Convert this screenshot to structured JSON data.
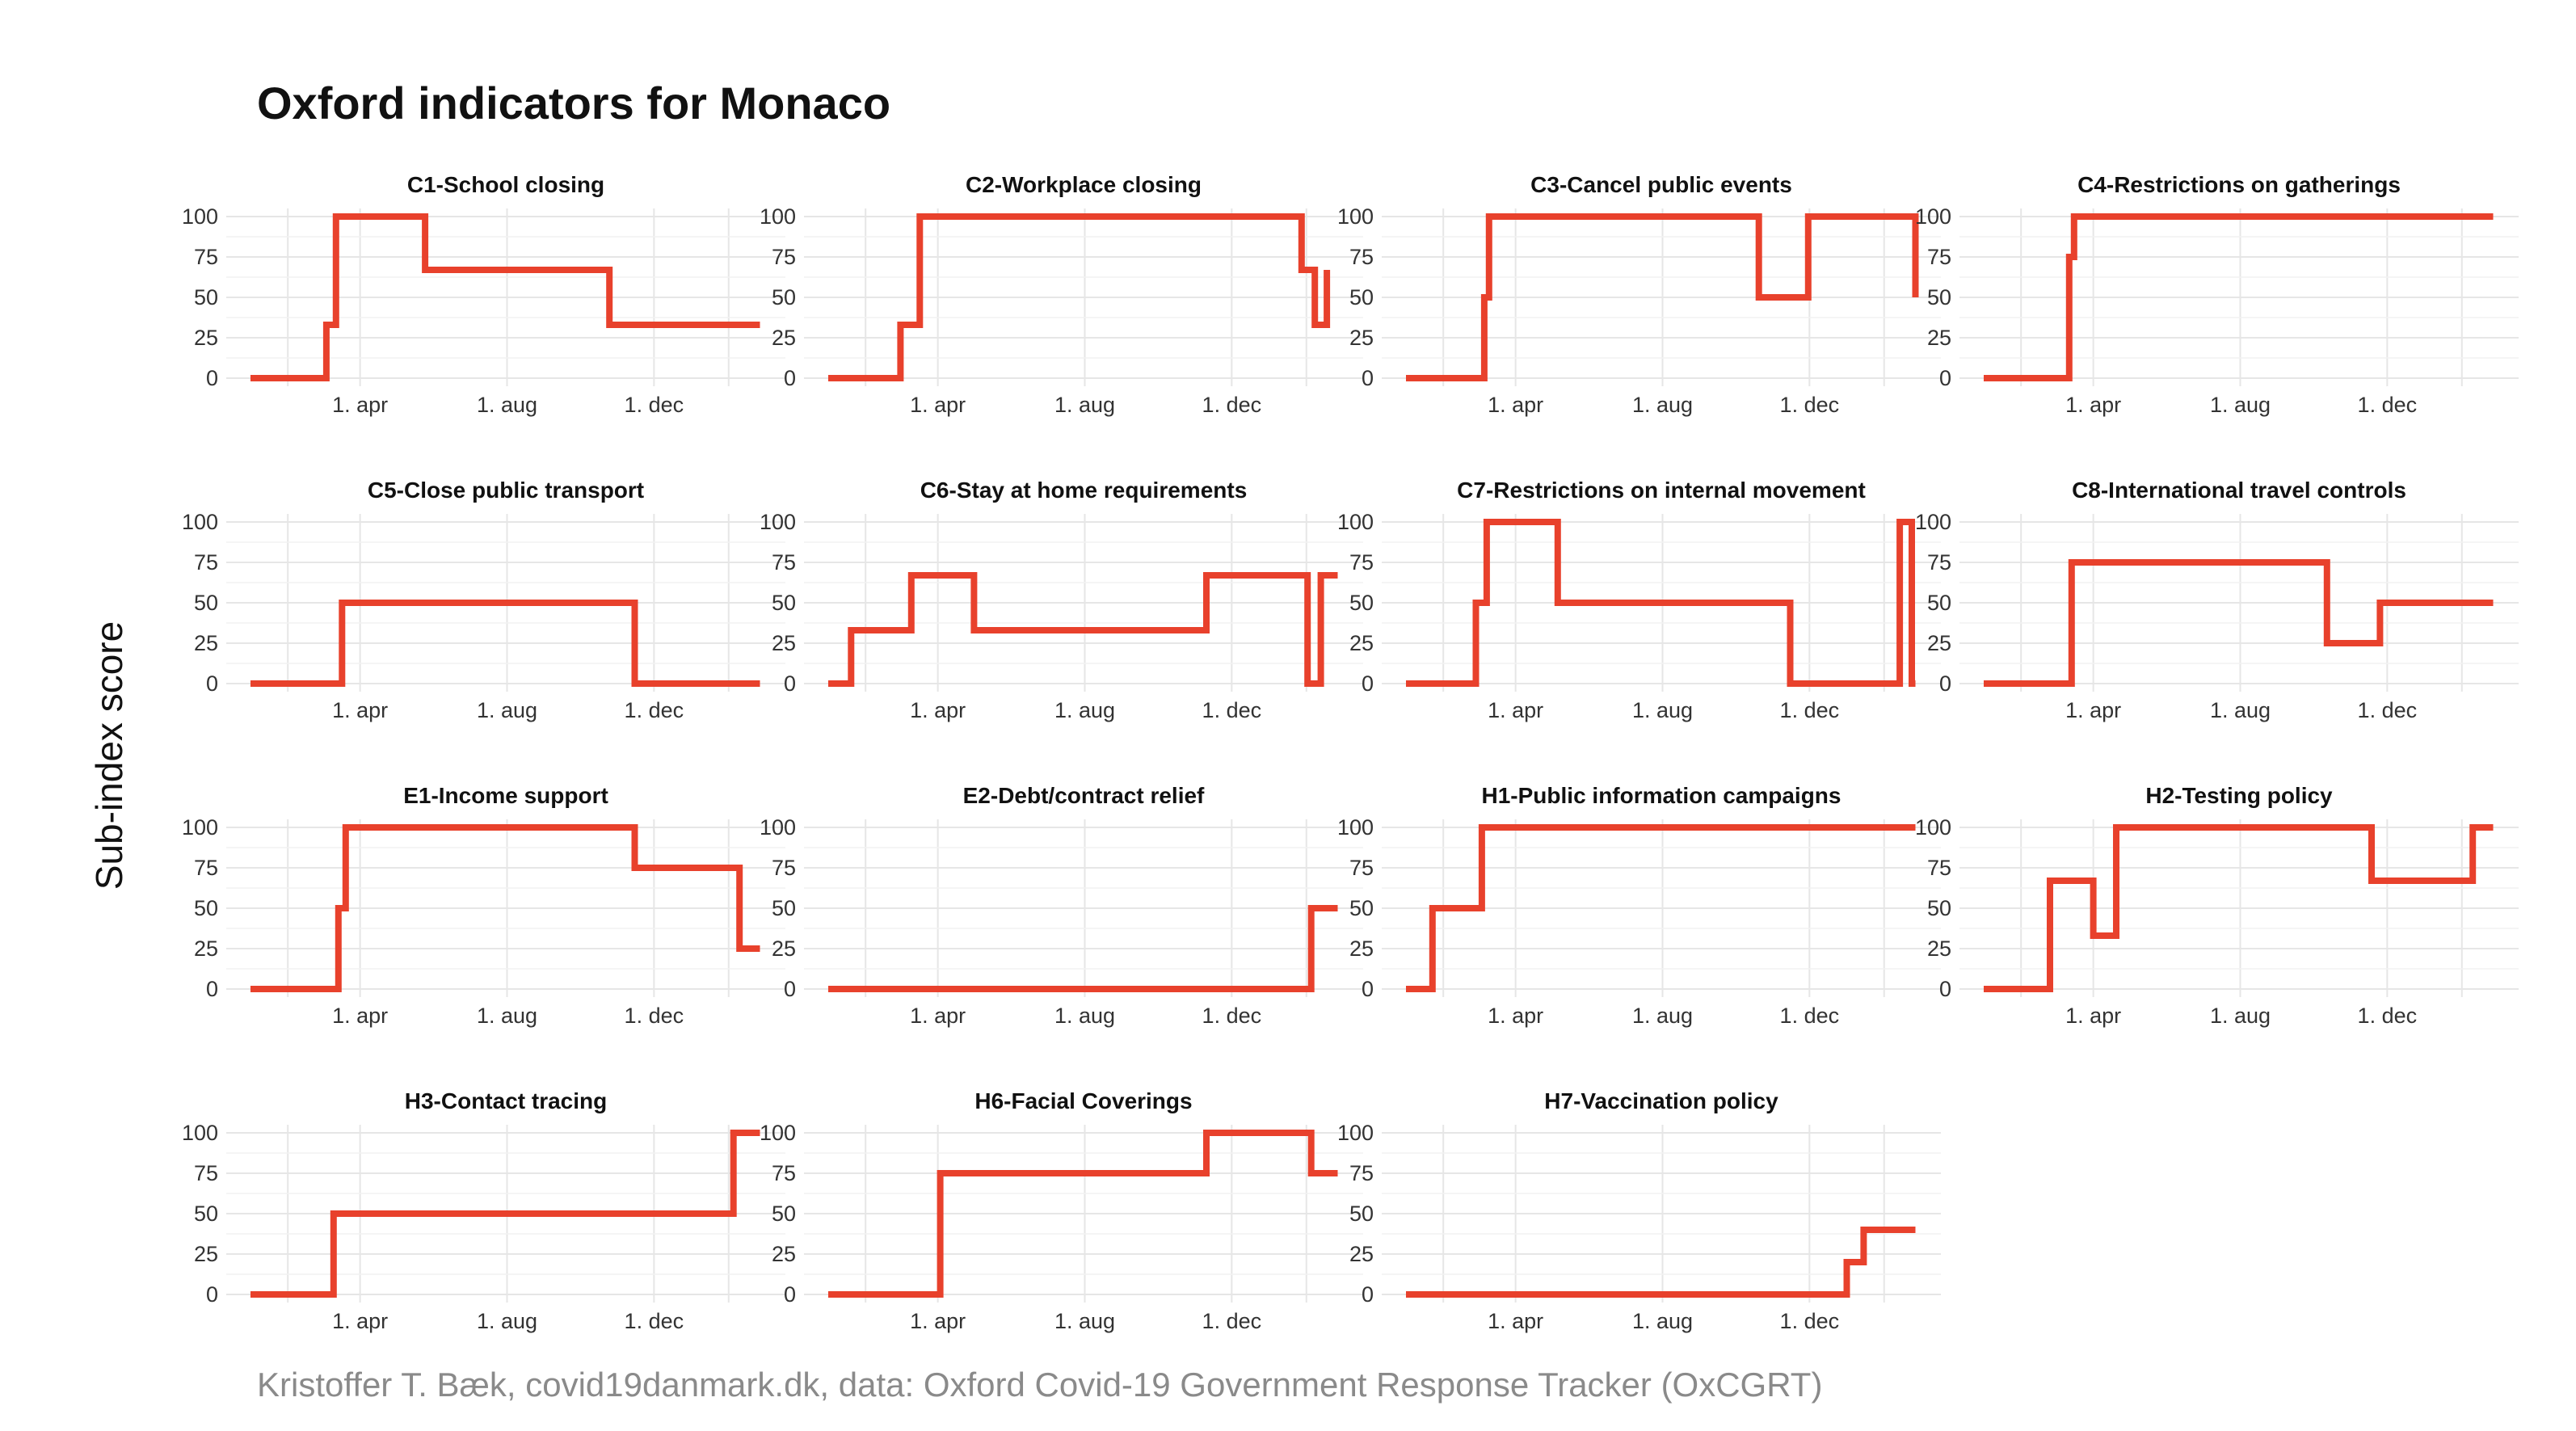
{
  "title": "Oxford indicators for Monaco",
  "ylabel": "Sub-index score",
  "caption": "Kristoffer T. Bæk, covid19danmark.dk, data: Oxford Covid-19 Government Response Tracker (OxCGRT)",
  "colors": {
    "line": "#e8412c",
    "grid": "#e6e6e6",
    "text": "#333333"
  },
  "chart_data": [
    {
      "type": "line",
      "title": "C1-School closing",
      "x_range": [
        "2020-01-01",
        "2021-02-28"
      ],
      "ylim": [
        0,
        100
      ],
      "x_ticks": [
        "1. apr",
        "1. aug",
        "1. dec"
      ],
      "y_ticks": [
        0,
        25,
        50,
        75,
        100
      ],
      "x": [
        "2020-01-01",
        "2020-03-04",
        "2020-03-12",
        "2020-03-16",
        "2020-05-25",
        "2020-10-25",
        "2021-02-27"
      ],
      "y": [
        0,
        33,
        100,
        100,
        67,
        33,
        33
      ]
    },
    {
      "type": "line",
      "title": "C2-Workplace closing",
      "x_range": [
        "2020-01-01",
        "2021-02-28"
      ],
      "ylim": [
        0,
        100
      ],
      "x_ticks": [
        "1. apr",
        "1. aug",
        "1. dec"
      ],
      "y_ticks": [
        0,
        25,
        50,
        75,
        100
      ],
      "x": [
        "2020-01-01",
        "2020-03-01",
        "2020-03-17",
        "2020-05-04",
        "2021-01-28",
        "2021-02-08",
        "2021-02-18"
      ],
      "y": [
        0,
        33,
        100,
        100,
        67,
        33,
        67
      ]
    },
    {
      "type": "line",
      "title": "C3-Cancel public events",
      "x_range": [
        "2020-01-01",
        "2021-02-28"
      ],
      "ylim": [
        0,
        100
      ],
      "x_ticks": [
        "1. apr",
        "1. aug",
        "1. dec"
      ],
      "y_ticks": [
        0,
        25,
        50,
        75,
        100
      ],
      "x": [
        "2020-01-01",
        "2020-03-06",
        "2020-03-10",
        "2020-05-15",
        "2020-10-20",
        "2020-11-30",
        "2021-02-27"
      ],
      "y": [
        0,
        50,
        100,
        100,
        50,
        100,
        50
      ]
    },
    {
      "type": "line",
      "title": "C4-Restrictions on gatherings",
      "x_range": [
        "2020-01-01",
        "2021-02-28"
      ],
      "ylim": [
        0,
        100
      ],
      "x_ticks": [
        "1. apr",
        "1. aug",
        "1. dec"
      ],
      "y_ticks": [
        0,
        25,
        50,
        75,
        100
      ],
      "x": [
        "2020-01-01",
        "2020-03-12",
        "2020-03-16",
        "2021-02-27"
      ],
      "y": [
        0,
        75,
        100,
        100
      ]
    },
    {
      "type": "line",
      "title": "C5-Close public transport",
      "x_range": [
        "2020-01-01",
        "2021-02-28"
      ],
      "ylim": [
        0,
        100
      ],
      "x_ticks": [
        "1. apr",
        "1. aug",
        "1. dec"
      ],
      "y_ticks": [
        0,
        25,
        50,
        75,
        100
      ],
      "x": [
        "2020-01-01",
        "2020-03-17",
        "2020-11-15",
        "2021-02-27"
      ],
      "y": [
        0,
        50,
        0,
        0
      ]
    },
    {
      "type": "line",
      "title": "C6-Stay at home requirements",
      "x_range": [
        "2020-01-01",
        "2021-02-28"
      ],
      "ylim": [
        0,
        100
      ],
      "x_ticks": [
        "1. apr",
        "1. aug",
        "1. dec"
      ],
      "y_ticks": [
        0,
        25,
        50,
        75,
        100
      ],
      "x": [
        "2020-01-01",
        "2020-01-20",
        "2020-03-10",
        "2020-05-01",
        "2020-11-10",
        "2021-02-02",
        "2021-02-13",
        "2021-02-27"
      ],
      "y": [
        0,
        33,
        67,
        33,
        67,
        0,
        67,
        67
      ]
    },
    {
      "type": "line",
      "title": "C7-Restrictions on internal movement",
      "x_range": [
        "2020-01-01",
        "2021-02-28"
      ],
      "ylim": [
        0,
        100
      ],
      "x_ticks": [
        "1. apr",
        "1. aug",
        "1. dec"
      ],
      "y_ticks": [
        0,
        25,
        50,
        75,
        100
      ],
      "x": [
        "2020-01-01",
        "2020-02-28",
        "2020-03-08",
        "2020-03-14",
        "2020-05-06",
        "2020-11-15",
        "2021-02-14",
        "2021-02-24",
        "2021-02-27"
      ],
      "y": [
        0,
        50,
        100,
        100,
        50,
        0,
        100,
        0,
        0
      ]
    },
    {
      "type": "line",
      "title": "C8-International travel controls",
      "x_range": [
        "2020-01-01",
        "2021-02-28"
      ],
      "ylim": [
        0,
        100
      ],
      "x_ticks": [
        "1. apr",
        "1. aug",
        "1. dec"
      ],
      "y_ticks": [
        0,
        25,
        50,
        75,
        100
      ],
      "x": [
        "2020-01-01",
        "2020-03-14",
        "2020-10-12",
        "2020-11-25",
        "2021-02-27"
      ],
      "y": [
        0,
        75,
        25,
        50,
        50
      ]
    },
    {
      "type": "line",
      "title": "E1-Income support",
      "x_range": [
        "2020-01-01",
        "2021-02-28"
      ],
      "ylim": [
        0,
        100
      ],
      "x_ticks": [
        "1. apr",
        "1. aug",
        "1. dec"
      ],
      "y_ticks": [
        0,
        25,
        50,
        75,
        100
      ],
      "x": [
        "2020-01-01",
        "2020-03-14",
        "2020-03-20",
        "2020-11-15",
        "2021-02-10",
        "2021-02-27"
      ],
      "y": [
        0,
        50,
        100,
        75,
        25,
        25
      ]
    },
    {
      "type": "line",
      "title": "E2-Debt/contract relief",
      "x_range": [
        "2020-01-01",
        "2021-02-28"
      ],
      "ylim": [
        0,
        100
      ],
      "x_ticks": [
        "1. apr",
        "1. aug",
        "1. dec"
      ],
      "y_ticks": [
        0,
        25,
        50,
        75,
        100
      ],
      "x": [
        "2020-01-01",
        "2021-02-05",
        "2021-02-27"
      ],
      "y": [
        0,
        50,
        50
      ]
    },
    {
      "type": "line",
      "title": "H1-Public information campaigns",
      "x_range": [
        "2020-01-01",
        "2021-02-28"
      ],
      "ylim": [
        0,
        100
      ],
      "x_ticks": [
        "1. apr",
        "1. aug",
        "1. dec"
      ],
      "y_ticks": [
        0,
        25,
        50,
        75,
        100
      ],
      "x": [
        "2020-01-01",
        "2020-01-23",
        "2020-03-04",
        "2021-02-27"
      ],
      "y": [
        0,
        50,
        100,
        100
      ]
    },
    {
      "type": "line",
      "title": "H2-Testing policy",
      "x_range": [
        "2020-01-01",
        "2021-02-28"
      ],
      "ylim": [
        0,
        100
      ],
      "x_ticks": [
        "1. apr",
        "1. aug",
        "1. dec"
      ],
      "y_ticks": [
        0,
        25,
        50,
        75,
        100
      ],
      "x": [
        "2020-01-01",
        "2020-02-25",
        "2020-04-01",
        "2020-04-20",
        "2020-11-18",
        "2021-02-10",
        "2021-02-27"
      ],
      "y": [
        0,
        67,
        33,
        100,
        67,
        100,
        100
      ]
    },
    {
      "type": "line",
      "title": "H3-Contact tracing",
      "x_range": [
        "2020-01-01",
        "2021-02-28"
      ],
      "ylim": [
        0,
        100
      ],
      "x_ticks": [
        "1. apr",
        "1. aug",
        "1. dec"
      ],
      "y_ticks": [
        0,
        25,
        50,
        75,
        100
      ],
      "x": [
        "2020-01-01",
        "2020-03-10",
        "2021-02-05",
        "2021-02-27"
      ],
      "y": [
        0,
        50,
        100,
        100
      ]
    },
    {
      "type": "line",
      "title": "H6-Facial Coverings",
      "x_range": [
        "2020-01-01",
        "2021-02-28"
      ],
      "ylim": [
        0,
        100
      ],
      "x_ticks": [
        "1. apr",
        "1. aug",
        "1. dec"
      ],
      "y_ticks": [
        0,
        25,
        50,
        75,
        100
      ],
      "x": [
        "2020-01-01",
        "2020-04-03",
        "2020-11-10",
        "2021-02-05",
        "2021-02-27"
      ],
      "y": [
        0,
        75,
        100,
        75,
        75
      ]
    },
    {
      "type": "line",
      "title": "H7-Vaccination policy",
      "x_range": [
        "2020-01-01",
        "2021-02-28"
      ],
      "ylim": [
        0,
        100
      ],
      "x_ticks": [
        "1. apr",
        "1. aug",
        "1. dec"
      ],
      "y_ticks": [
        0,
        25,
        50,
        75,
        100
      ],
      "x": [
        "2020-01-01",
        "2021-01-01",
        "2021-01-15",
        "2021-02-27"
      ],
      "y": [
        0,
        20,
        40,
        40
      ]
    }
  ]
}
